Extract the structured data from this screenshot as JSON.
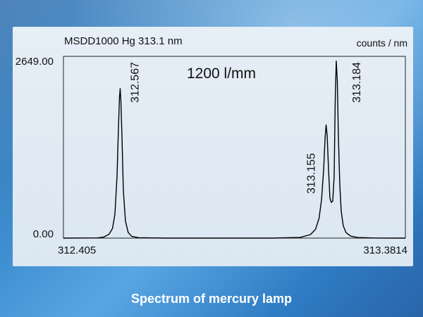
{
  "caption": "Spectrum of mercury lamp",
  "chart_data": {
    "type": "line",
    "title": "MSDD1000 Hg 313.1 nm",
    "ylabel": "counts / nm",
    "annotation": "1200 l/mm",
    "xlim": [
      312.405,
      313.3814
    ],
    "ylim": [
      0.0,
      2649.0
    ],
    "x_tick_labels": [
      "312.405",
      "313.3814"
    ],
    "y_tick_labels": [
      "0.00",
      "2649.00"
    ],
    "peaks": [
      {
        "label": "312.567",
        "x": 312.567,
        "y": 2180
      },
      {
        "label": "313.155",
        "x": 313.155,
        "y": 1650
      },
      {
        "label": "313.184",
        "x": 313.184,
        "y": 2580
      }
    ],
    "series": [
      {
        "color": "#000000",
        "x": [
          312.405,
          312.5,
          312.52,
          312.535,
          312.545,
          312.552,
          312.558,
          312.562,
          312.565,
          312.567,
          312.569,
          312.572,
          312.576,
          312.582,
          312.59,
          312.6,
          312.62,
          312.7,
          313.0,
          313.08,
          313.11,
          313.125,
          313.135,
          313.142,
          313.148,
          313.152,
          313.155,
          313.158,
          313.162,
          313.166,
          313.17,
          313.174,
          313.178,
          313.181,
          313.184,
          313.187,
          313.19,
          313.194,
          313.198,
          313.204,
          313.212,
          313.225,
          313.245,
          313.3,
          313.3814
        ],
        "values": [
          0,
          2,
          15,
          55,
          140,
          350,
          900,
          1600,
          2050,
          2180,
          2000,
          1500,
          700,
          250,
          80,
          25,
          6,
          0,
          0,
          10,
          50,
          130,
          290,
          560,
          1000,
          1450,
          1650,
          1500,
          1000,
          580,
          520,
          540,
          900,
          2000,
          2580,
          2300,
          1500,
          800,
          400,
          180,
          80,
          30,
          8,
          1,
          0
        ]
      }
    ],
    "grid": false,
    "legend": "none"
  }
}
